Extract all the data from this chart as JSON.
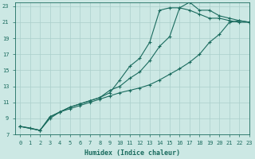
{
  "xlabel": "Humidex (Indice chaleur)",
  "bg_color": "#cce8e4",
  "grid_color": "#aacfcb",
  "line_color": "#1a6b5e",
  "xlim": [
    -0.5,
    23
  ],
  "ylim": [
    7,
    23.5
  ],
  "yticks": [
    7,
    9,
    11,
    13,
    15,
    17,
    19,
    21,
    23
  ],
  "xticks": [
    0,
    1,
    2,
    3,
    4,
    5,
    6,
    7,
    8,
    9,
    10,
    11,
    12,
    13,
    14,
    15,
    16,
    17,
    18,
    19,
    20,
    21,
    22,
    23
  ],
  "line1_x": [
    0,
    1,
    2,
    3,
    4,
    5,
    6,
    7,
    8,
    9,
    10,
    11,
    12,
    13,
    14,
    15,
    16,
    17,
    18,
    19,
    20,
    21,
    22,
    23
  ],
  "line1_y": [
    8.0,
    7.8,
    7.5,
    9.0,
    9.8,
    10.2,
    10.6,
    11.0,
    11.4,
    11.8,
    12.2,
    12.5,
    12.8,
    13.2,
    13.8,
    14.5,
    15.2,
    16.0,
    17.0,
    18.5,
    19.5,
    21.0,
    21.2,
    21.0
  ],
  "line2_x": [
    0,
    2,
    3,
    4,
    5,
    6,
    7,
    8,
    9,
    10,
    11,
    12,
    13,
    14,
    15,
    16,
    17,
    18,
    19,
    20,
    21,
    22,
    23
  ],
  "line2_y": [
    8.0,
    7.5,
    9.2,
    9.8,
    10.4,
    10.8,
    11.2,
    11.6,
    12.2,
    13.8,
    15.5,
    16.5,
    18.5,
    22.5,
    22.8,
    22.8,
    22.5,
    22.0,
    21.5,
    21.5,
    21.2,
    21.0,
    21.0
  ],
  "line3_x": [
    0,
    2,
    3,
    4,
    5,
    6,
    7,
    8,
    9,
    10,
    11,
    12,
    13,
    14,
    15,
    16,
    17,
    18,
    19,
    20,
    21,
    22,
    23
  ],
  "line3_y": [
    8.0,
    7.5,
    9.2,
    9.8,
    10.4,
    10.8,
    11.2,
    11.6,
    12.5,
    13.0,
    14.0,
    14.8,
    16.2,
    18.0,
    19.2,
    22.8,
    23.5,
    22.5,
    22.5,
    21.8,
    21.5,
    21.2,
    21.0
  ]
}
